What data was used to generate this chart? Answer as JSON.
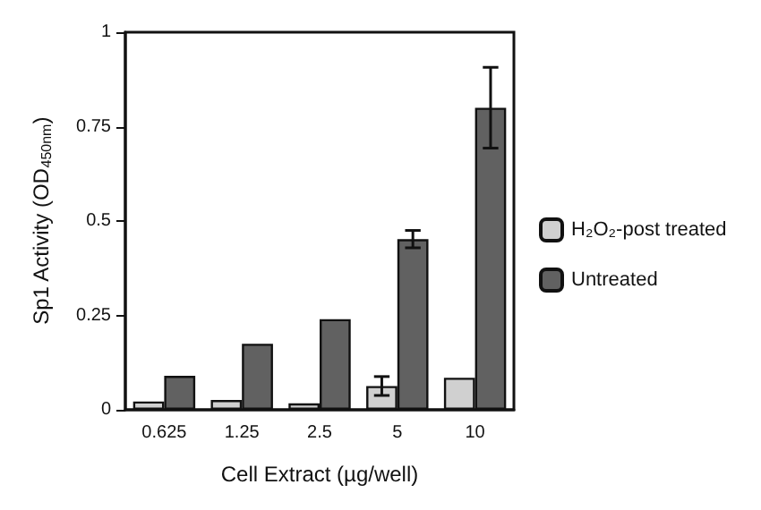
{
  "chart_data": {
    "type": "bar",
    "xlabel": "Cell Extract (µg/well)",
    "ylabel": "Sp1 Activity (OD$_{450nm}$)",
    "categories": [
      "0.625",
      "1.25",
      "2.5",
      "5",
      "10"
    ],
    "series": [
      {
        "name": "H₂O₂-post treated",
        "color": "#d0d0d0",
        "values": [
          0.022,
          0.026,
          0.017,
          0.063,
          0.085
        ],
        "errors": [
          null,
          null,
          null,
          0.025,
          null
        ]
      },
      {
        "name": "Untreated",
        "color": "#616161",
        "values": [
          0.09,
          0.175,
          0.24,
          0.452,
          0.8
        ],
        "errors": [
          null,
          null,
          null,
          0.023,
          0.107
        ]
      }
    ],
    "ylim": [
      0,
      1
    ],
    "yticks": [
      0,
      0.25,
      0.5,
      0.75,
      1
    ],
    "grid": false,
    "legend": "right"
  }
}
